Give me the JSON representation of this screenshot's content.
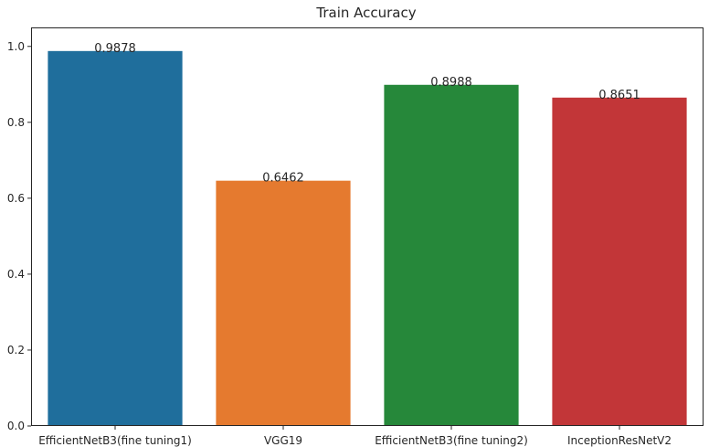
{
  "chart_data": {
    "type": "bar",
    "title": "Train Accuracy",
    "xlabel": "",
    "ylabel": "",
    "categories": [
      "EfficientNetB3(fine tuning1)",
      "VGG19",
      "EfficientNetB3(fine tuning2)",
      "InceptionResNetV2"
    ],
    "values": [
      0.9878,
      0.6462,
      0.8988,
      0.8651
    ],
    "data_labels": [
      "0.9878",
      "0.6462",
      "0.8988",
      "0.8651"
    ],
    "colors": [
      "#1f6e9c",
      "#e57a2f",
      "#26883a",
      "#c23638"
    ],
    "ylim": [
      0,
      1.05
    ],
    "yticks": [
      0.0,
      0.2,
      0.4,
      0.6,
      0.8,
      1.0
    ],
    "ytick_labels": [
      "0.0",
      "0.2",
      "0.4",
      "0.6",
      "0.8",
      "1.0"
    ],
    "grid": false,
    "legend": "none"
  }
}
